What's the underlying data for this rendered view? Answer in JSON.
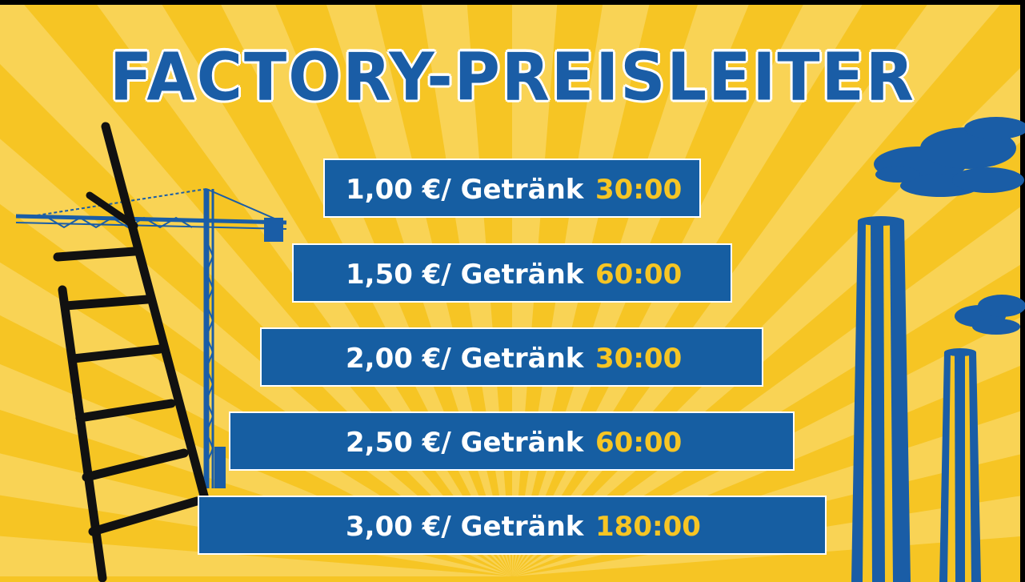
{
  "title": "FACTORY-PREISLEITER",
  "tiers": [
    {
      "price": "1,00 €/ Getränk",
      "time": "30:00"
    },
    {
      "price": "1,50 €/ Getränk",
      "time": "60:00"
    },
    {
      "price": "2,00 €/ Getränk",
      "time": "30:00"
    },
    {
      "price": "2,50 €/ Getränk",
      "time": "60:00"
    },
    {
      "price": "3,00 €/ Getränk",
      "time": "180:00"
    }
  ],
  "colors": {
    "background": "#f6c524",
    "rays": "#f9d765",
    "bar": "#165ea2",
    "time_text": "#f6c524",
    "silhouette": "#1a5da6",
    "ladder": "#111111"
  },
  "decorations": [
    "ladder-icon",
    "crane-icon",
    "smokestack-icon",
    "smoke-cloud-icon"
  ]
}
